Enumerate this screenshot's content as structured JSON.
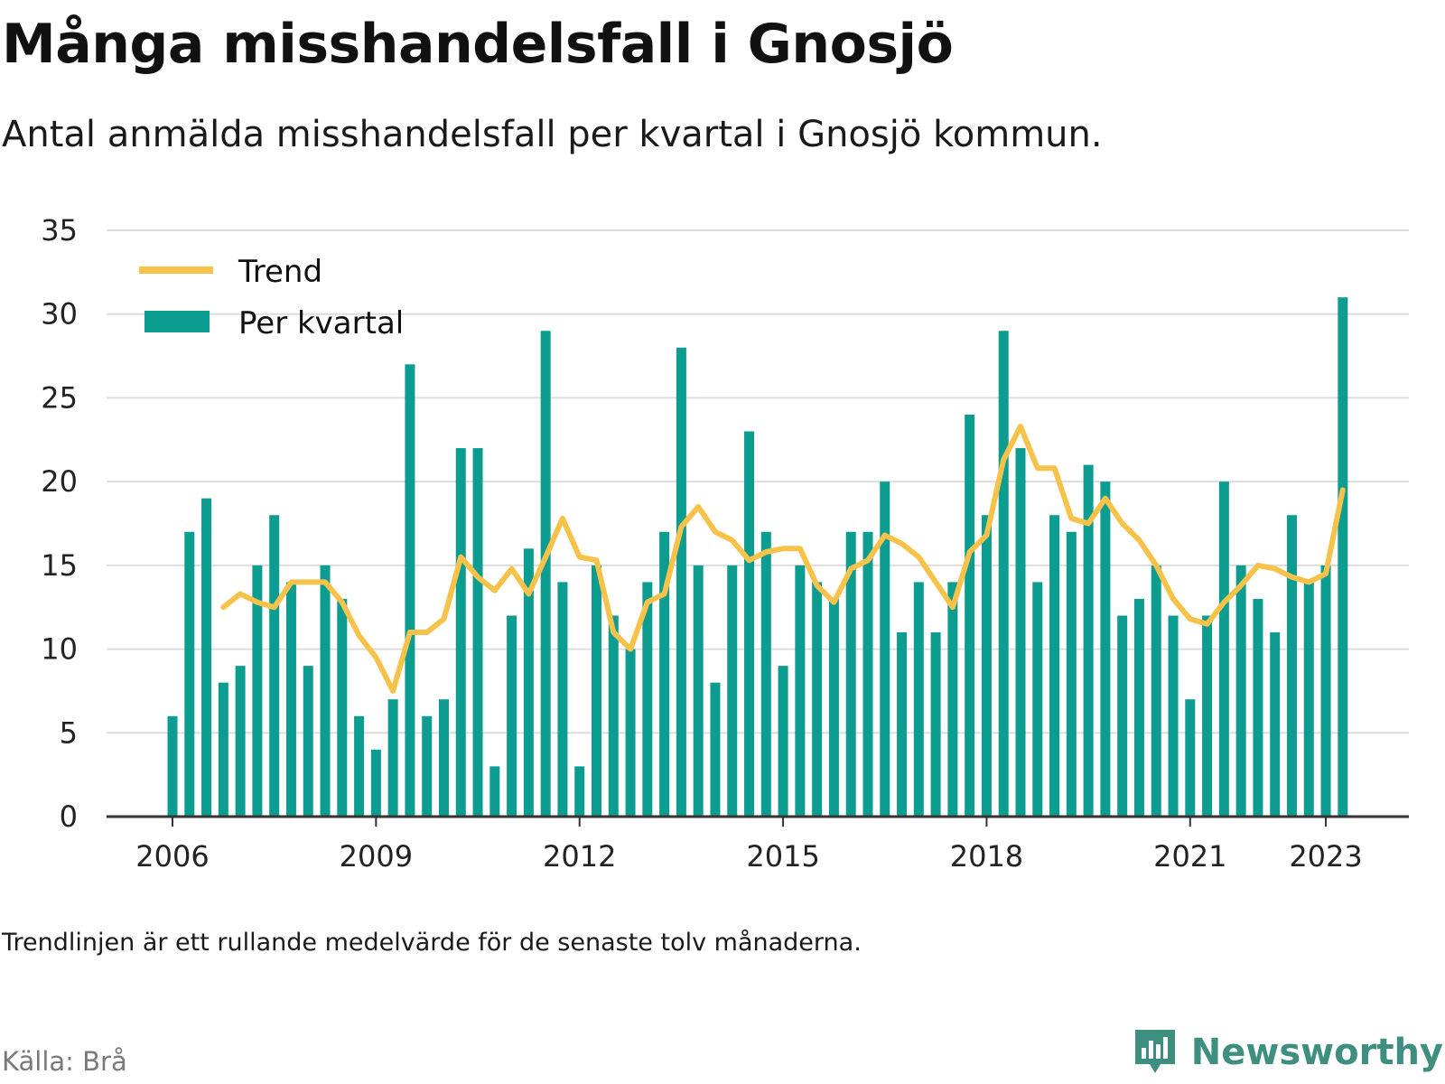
{
  "title": "Många misshandelsfall i Gnosjö",
  "subtitle": "Antal anmälda misshandelsfall per kvartal i Gnosjö kommun.",
  "note": "Trendlinjen är ett rullande medelvärde för de senaste tolv månaderna.",
  "source": "Källa: Brå",
  "brand": {
    "name": "Newsworthy",
    "icon": "newsworthy-logo-icon",
    "color": "#3f8f80"
  },
  "colors": {
    "bars": "#0d9c90",
    "trend": "#f7c24a",
    "grid": "#dddddd",
    "axis": "#333333"
  },
  "chart_data": {
    "type": "bar",
    "y_ticks": [
      0,
      5,
      10,
      15,
      20,
      25,
      30,
      35
    ],
    "ylim": [
      0,
      35
    ],
    "x_ticks": [
      {
        "label": "2006",
        "quarter": 0
      },
      {
        "label": "2009",
        "quarter": 12
      },
      {
        "label": "2012",
        "quarter": 24
      },
      {
        "label": "2015",
        "quarter": 36
      },
      {
        "label": "2018",
        "quarter": 48
      },
      {
        "label": "2021",
        "quarter": 60
      },
      {
        "label": "2023",
        "quarter": 68
      }
    ],
    "legend": {
      "position": "top-left",
      "entries": [
        "Trend",
        "Per kvartal"
      ]
    },
    "grid": true,
    "series": [
      {
        "name": "Per kvartal",
        "type": "bar",
        "values": [
          6,
          17,
          19,
          8,
          9,
          15,
          18,
          14,
          9,
          15,
          13,
          6,
          4,
          7,
          27,
          6,
          7,
          22,
          22,
          3,
          12,
          16,
          29,
          14,
          3,
          15,
          12,
          10,
          14,
          17,
          28,
          15,
          8,
          15,
          23,
          17,
          9,
          15,
          14,
          13,
          17,
          17,
          20,
          11,
          14,
          11,
          14,
          24,
          18,
          29,
          22,
          14,
          18,
          17,
          21,
          20,
          12,
          13,
          15,
          12,
          7,
          12,
          20,
          15,
          13,
          11,
          18,
          14,
          15,
          31
        ]
      },
      {
        "name": "Trend",
        "type": "line",
        "start_quarter": 3,
        "values": [
          12.5,
          13.3,
          12.8,
          12.5,
          14.0,
          14.0,
          14.0,
          12.8,
          10.8,
          9.5,
          7.5,
          11.0,
          11.0,
          11.8,
          15.5,
          14.3,
          13.5,
          14.8,
          13.3,
          15.5,
          17.8,
          15.5,
          15.3,
          11.0,
          10.0,
          12.8,
          13.3,
          17.3,
          18.5,
          17.0,
          16.5,
          15.3,
          15.8,
          16.0,
          16.0,
          13.8,
          12.8,
          14.8,
          15.3,
          16.8,
          16.3,
          15.5,
          14.0,
          12.5,
          15.8,
          16.8,
          21.3,
          23.3,
          20.8,
          20.8,
          17.8,
          17.5,
          19.0,
          17.5,
          16.5,
          15.0,
          13.0,
          11.8,
          11.5,
          12.8,
          13.8,
          15.0,
          14.8,
          14.3,
          14.0,
          14.5,
          19.5
        ]
      }
    ]
  }
}
